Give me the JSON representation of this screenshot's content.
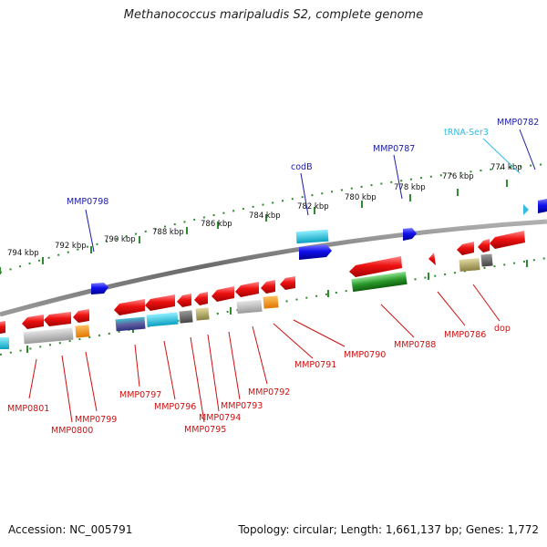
{
  "title": "Methanococcus maripaludis S2, complete genome",
  "accession": "Accession: NC_005791",
  "topology": "Topology: circular; Length: 1,661,137 bp; Genes: 1,772",
  "colors": {
    "backbone": "#808080",
    "tick": "#2e8b2e",
    "forward_label": "#1a1aa8",
    "reverse_label": "#cc1111",
    "trna_label": "#33bbe6",
    "cds_reverse": "#e01010",
    "cds_forward": "#1010e0"
  },
  "scale_labels": [
    "794 kbp",
    "792 kbp",
    "790 kbp",
    "788 kbp",
    "786 kbp",
    "784 kbp",
    "782 kbp",
    "780 kbp",
    "778 kbp",
    "776 kbp",
    "774 kbp"
  ],
  "forward_labels": [
    "MMP0798",
    "codB",
    "MMP0787",
    "tRNA-Ser3",
    "MMP0782"
  ],
  "reverse_labels": [
    "MMP0801",
    "MMP0800",
    "MMP0799",
    "MMP0797",
    "MMP0796",
    "MMP0795",
    "MMP0794",
    "MMP0793",
    "MMP0792",
    "MMP0791",
    "MMP0790",
    "MMP0788",
    "MMP0786",
    "dop"
  ]
}
